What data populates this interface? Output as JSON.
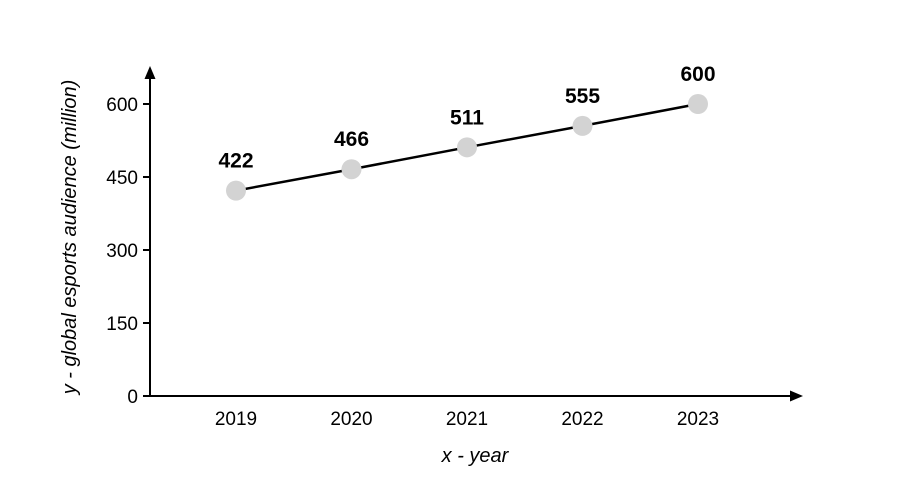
{
  "chart_data": {
    "type": "line",
    "title": "",
    "categories": [
      "2019",
      "2020",
      "2021",
      "2022",
      "2023"
    ],
    "series": [
      {
        "name": "global esports audience",
        "values": [
          422,
          466,
          511,
          555,
          600
        ],
        "data_labels": [
          "422",
          "466",
          "511",
          "555",
          "600"
        ]
      }
    ],
    "xlabel": "x - year",
    "ylabel": "y - global esports audience (million)",
    "yticks": [
      0,
      150,
      300,
      450,
      600
    ],
    "ytick_labels": [
      "0",
      "150",
      "300",
      "450",
      "600"
    ],
    "ylim": [
      0,
      600
    ],
    "grid": false,
    "legend": "none"
  },
  "colors": {
    "line": "#000000",
    "marker": "#d3d3d3",
    "axis": "#000000"
  }
}
